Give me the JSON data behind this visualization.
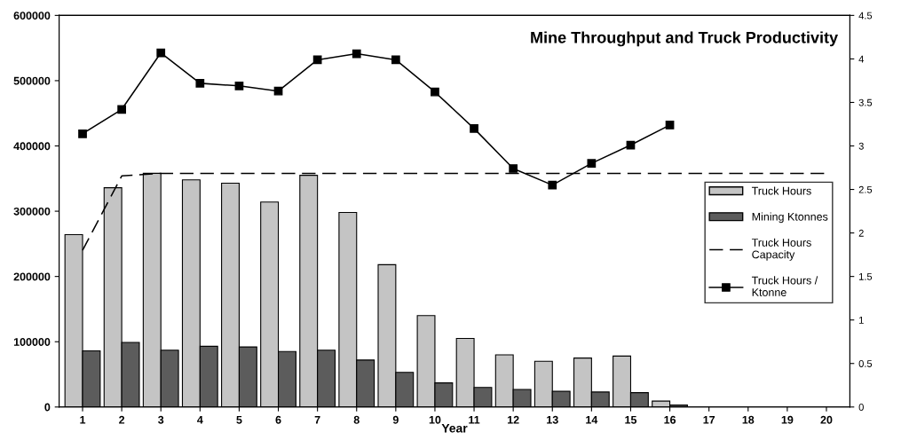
{
  "chart_data": {
    "type": "bar",
    "title": "Mine Throughput and Truck Productivity",
    "xlabel": "Year",
    "categories": [
      "1",
      "2",
      "3",
      "4",
      "5",
      "6",
      "7",
      "8",
      "9",
      "10",
      "11",
      "12",
      "13",
      "14",
      "15",
      "16",
      "17",
      "18",
      "19",
      "20"
    ],
    "series": [
      {
        "name": "Truck Hours",
        "color": "#c4c4c4",
        "values": [
          264000,
          336000,
          358000,
          348000,
          343000,
          314000,
          355000,
          298000,
          218000,
          140000,
          105000,
          80000,
          70000,
          75000,
          78000,
          9000,
          null,
          null,
          null,
          null
        ]
      },
      {
        "name": "Mining Ktonnes",
        "color": "#5c5c5c",
        "values": [
          86000,
          99000,
          87000,
          93000,
          92000,
          85000,
          87000,
          72000,
          53000,
          37000,
          30000,
          27000,
          24000,
          23000,
          22000,
          3000,
          null,
          null,
          null,
          null
        ]
      },
      {
        "name": "Truck Hours\nCapacity",
        "type": "line",
        "color": "#000000",
        "line_style": "dashed",
        "marker": "none",
        "values": [
          240000,
          354000,
          358000,
          358000,
          358000,
          358000,
          358000,
          358000,
          358000,
          358000,
          358000,
          358000,
          358000,
          358000,
          358000,
          358000,
          358000,
          358000,
          358000,
          358000
        ]
      },
      {
        "name": "Truck Hours /\nKtonne",
        "type": "line",
        "axis": "y2",
        "color": "#000000",
        "line_style": "solid",
        "marker": "square",
        "values": [
          3.14,
          3.42,
          4.07,
          3.72,
          3.69,
          3.63,
          3.99,
          4.06,
          3.99,
          3.62,
          3.2,
          2.74,
          2.55,
          2.8,
          3.01,
          3.24,
          null,
          null,
          null,
          null
        ]
      }
    ],
    "ylim": [
      0,
      600000
    ],
    "yticks": [
      0,
      100000,
      200000,
      300000,
      400000,
      500000,
      600000
    ],
    "y2lim": [
      0,
      4.5
    ],
    "y2ticks": [
      0,
      0.5,
      1,
      1.5,
      2,
      2.5,
      3,
      3.5,
      4,
      4.5
    ],
    "grid": false,
    "legend": "right"
  }
}
